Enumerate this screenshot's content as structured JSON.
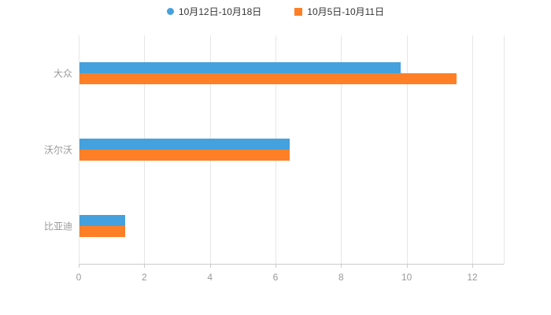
{
  "chart_data": {
    "type": "bar",
    "orientation": "horizontal",
    "title": "",
    "categories": [
      "大众",
      "沃尔沃",
      "比亚迪"
    ],
    "series": [
      {
        "name": "10月12日-10月18日",
        "color": "#45a1dd",
        "marker": "circle",
        "values": [
          9.8,
          6.4,
          1.4
        ]
      },
      {
        "name": "10月5日-10月11日",
        "color": "#ff7f27",
        "marker": "square",
        "values": [
          11.5,
          6.4,
          1.4
        ]
      }
    ],
    "xlim": [
      0,
      12
    ],
    "xticks": [
      0,
      2,
      4,
      6,
      8,
      10,
      12
    ],
    "grid": true,
    "legend_position": "top-center",
    "colors": {
      "grid_line": "#e6e6e6",
      "axis_line": "#cccccc",
      "tick_label": "#999999",
      "category_label": "#999999",
      "legend_text": "#333333",
      "background": "#ffffff"
    }
  }
}
